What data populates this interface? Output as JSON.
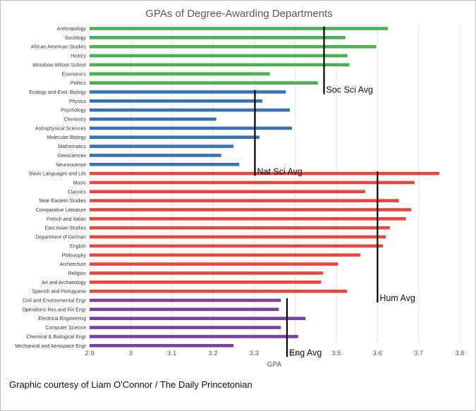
{
  "chart_data": {
    "type": "bar",
    "orientation": "horizontal",
    "title": "GPAs of Degree-Awarding Departments",
    "xlabel": "GPA",
    "ylabel": "",
    "xlim": [
      2.9,
      3.8
    ],
    "xticks": [
      "2.9",
      "3",
      "3.1",
      "3.2",
      "3.3",
      "3.4",
      "3.5",
      "3.6",
      "3.7",
      "3.8"
    ],
    "grid": true,
    "legend": "none",
    "groups": [
      {
        "color": "#4caf50",
        "average_label": "Soc Sci Avg",
        "average": 3.47,
        "categories": [
          "Anthropology",
          "Sociology",
          "African American Studies",
          "History",
          "Woodrow Wilson School",
          "Economics",
          "Politics"
        ],
        "values": [
          3.625,
          3.522,
          3.597,
          3.527,
          3.532,
          3.338,
          3.455
        ]
      },
      {
        "color": "#3673b5",
        "average_label": "Nat Sci Avg",
        "average": 3.302,
        "categories": [
          "Ecology and Evol. Biology",
          "Physics",
          "Psychology",
          "Chemistry",
          "Astrophysical Sciences",
          "Molecular Biology",
          "Mathematics",
          "Geosciences",
          "Neuroscience"
        ],
        "values": [
          3.377,
          3.32,
          3.387,
          3.208,
          3.392,
          3.313,
          3.25,
          3.22,
          3.264
        ]
      },
      {
        "color": "#e8453c",
        "average_label": "Hum Avg",
        "average": 3.6,
        "categories": [
          "Slavic Languages and Lits",
          "Music",
          "Classics",
          "Near Eastern Studies",
          "Comparative Literature",
          "French and Italian",
          "East Asian Studies",
          "Department of German",
          "English",
          "Philosophy",
          "Architecture",
          "Religion",
          "Art and Archaeology",
          "Spanish and Portuguese"
        ],
        "values": [
          3.75,
          3.69,
          3.57,
          3.652,
          3.682,
          3.669,
          3.63,
          3.62,
          3.613,
          3.558,
          3.504,
          3.468,
          3.463,
          3.526
        ]
      },
      {
        "color": "#7b3f9e",
        "average_label": "Eng Avg",
        "average": 3.38,
        "categories": [
          "Civil and Environmental Engr",
          "Operations Res and Fin Engr",
          "Electrical Engineering",
          "Computer Science",
          "Chemical & Biological Engr",
          "Mechanical and Aerospace Engr"
        ],
        "values": [
          3.365,
          3.36,
          3.425,
          3.365,
          3.407,
          3.25
        ]
      }
    ]
  },
  "credit": "Graphic courtesy of Liam O'Connor / The Daily Princetonian"
}
